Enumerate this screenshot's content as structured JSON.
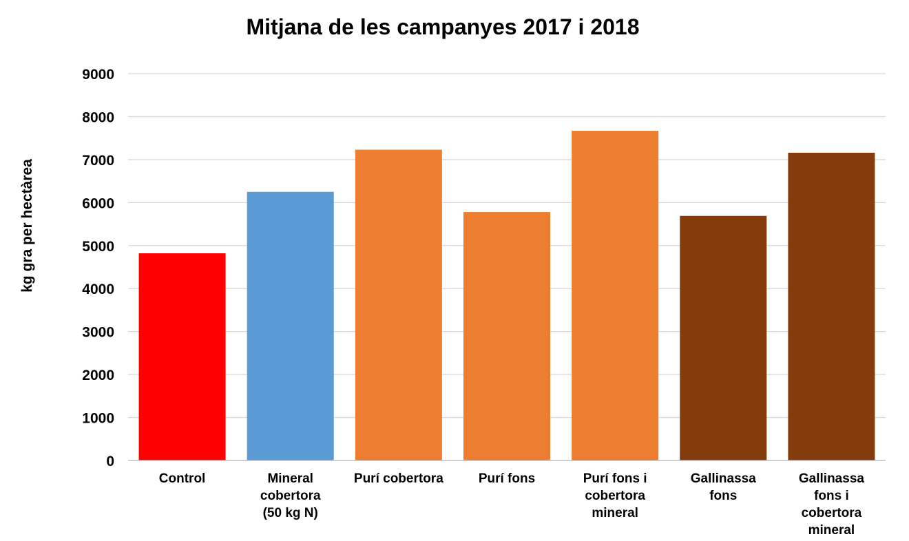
{
  "chart_data": {
    "type": "bar",
    "title": "Mitjana de les campanyes 2017 i 2018",
    "xlabel": "",
    "ylabel": "kg gra per hectàrea",
    "ylim": [
      0,
      9000
    ],
    "yticks": [
      0,
      1000,
      2000,
      3000,
      4000,
      5000,
      6000,
      7000,
      8000,
      9000
    ],
    "grid": true,
    "legend": "none",
    "categories": [
      [
        "Control"
      ],
      [
        "Mineral",
        "cobertora",
        "(50 kg N)"
      ],
      [
        "Purí cobertora"
      ],
      [
        "Purí fons"
      ],
      [
        "Purí fons i",
        "cobertora",
        "mineral"
      ],
      [
        "Gallinassa",
        "fons"
      ],
      [
        "Gallinassa",
        "fons i",
        "cobertora",
        "mineral"
      ]
    ],
    "values": [
      4820,
      6250,
      7230,
      5780,
      7670,
      5690,
      7160
    ],
    "bar_colors": [
      "#ff0000",
      "#5b9bd5",
      "#ed7d31",
      "#ed7d31",
      "#ed7d31",
      "#843c0c",
      "#843c0c"
    ],
    "grid_color": "#d9d9d9",
    "axis_color": "#bfbfbf"
  }
}
